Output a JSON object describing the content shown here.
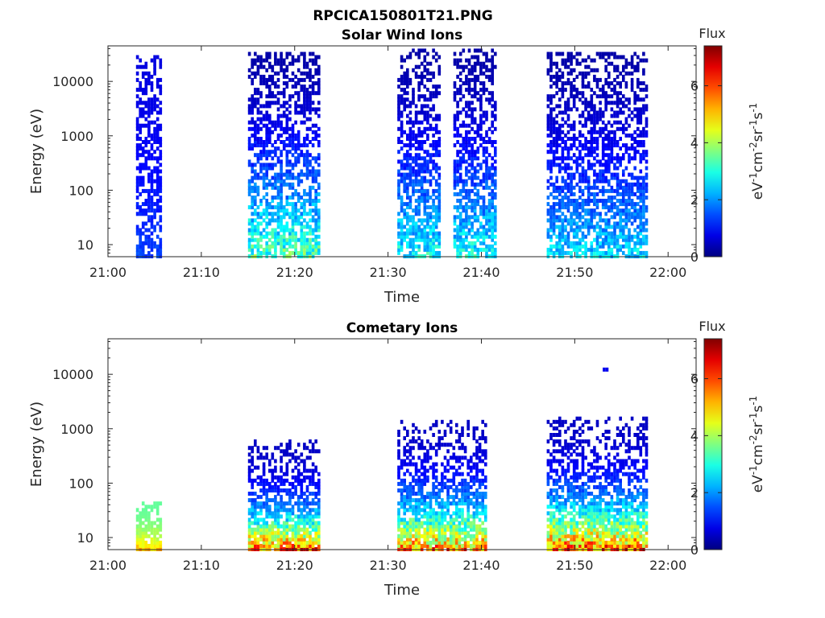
{
  "figure": {
    "title": "RPCICA150801T21.PNG"
  },
  "chart_data": [
    {
      "type": "heatmap",
      "title": "Solar Wind Ions",
      "xlabel": "Time",
      "ylabel": "Energy (eV)",
      "x_ticks": [
        "21:00",
        "21:10",
        "21:20",
        "21:30",
        "21:40",
        "21:50",
        "22:00"
      ],
      "x_range_minutes": [
        0,
        63
      ],
      "y_scale": "log",
      "y_ticks": [
        10,
        100,
        1000,
        10000
      ],
      "y_tick_labels": [
        "10",
        "100",
        "1000",
        "10000"
      ],
      "y_range": [
        6,
        45000
      ],
      "colorbar": {
        "title": "Flux",
        "label": "eV-1cm-2sr-1s-1",
        "min": 0,
        "max": 7.4,
        "ticks": [
          0,
          2,
          4,
          6
        ],
        "colormap": "jet"
      },
      "bursts": [
        {
          "t_start": "21:03",
          "t_end": "21:05",
          "e_low": 6,
          "e_high": 28000,
          "flux_low": 0.7,
          "flux_high": 1.6
        },
        {
          "t_start": "21:15",
          "t_end": "21:22",
          "e_low": 6,
          "e_high": 35000,
          "flux_low": 0.3,
          "flux_high": 4.2
        },
        {
          "t_start": "21:31",
          "t_end": "21:35",
          "e_low": 6,
          "e_high": 38000,
          "flux_low": 0.3,
          "flux_high": 3.6
        },
        {
          "t_start": "21:37",
          "t_end": "21:41",
          "e_low": 6,
          "e_high": 38000,
          "flux_low": 0.3,
          "flux_high": 3.6
        },
        {
          "t_start": "21:47",
          "t_end": "21:57",
          "e_low": 6,
          "e_high": 34000,
          "flux_low": 0.3,
          "flux_high": 3.2
        }
      ]
    },
    {
      "type": "heatmap",
      "title": "Cometary Ions",
      "xlabel": "Time",
      "ylabel": "Energy (eV)",
      "x_ticks": [
        "21:00",
        "21:10",
        "21:20",
        "21:30",
        "21:40",
        "21:50",
        "22:00"
      ],
      "x_range_minutes": [
        0,
        63
      ],
      "y_scale": "log",
      "y_ticks": [
        10,
        100,
        1000,
        10000
      ],
      "y_tick_labels": [
        "10",
        "100",
        "1000",
        "10000"
      ],
      "y_range": [
        6,
        45000
      ],
      "colorbar": {
        "title": "Flux",
        "label": "eV-1cm-2sr-1s-1",
        "min": 0,
        "max": 7.4,
        "ticks": [
          0,
          2,
          4,
          6
        ],
        "colormap": "jet"
      },
      "bursts": [
        {
          "t_start": "21:03",
          "t_end": "21:05",
          "e_low": 6,
          "e_high": 45,
          "flux_low": 3.5,
          "flux_high": 5.5
        },
        {
          "t_start": "21:15",
          "t_end": "21:22",
          "e_low": 6,
          "e_high": 600,
          "flux_low": 0.5,
          "flux_high": 7.2
        },
        {
          "t_start": "21:31",
          "t_end": "21:40",
          "e_low": 6,
          "e_high": 1500,
          "flux_low": 0.5,
          "flux_high": 6.9
        },
        {
          "t_start": "21:47",
          "t_end": "21:57",
          "e_low": 6,
          "e_high": 1600,
          "flux_low": 0.5,
          "flux_high": 7.3
        },
        {
          "t_start": "21:53",
          "t_end": "21:53",
          "e_low": 12000,
          "e_high": 13000,
          "flux_low": 0.8,
          "flux_high": 0.8
        }
      ]
    }
  ]
}
